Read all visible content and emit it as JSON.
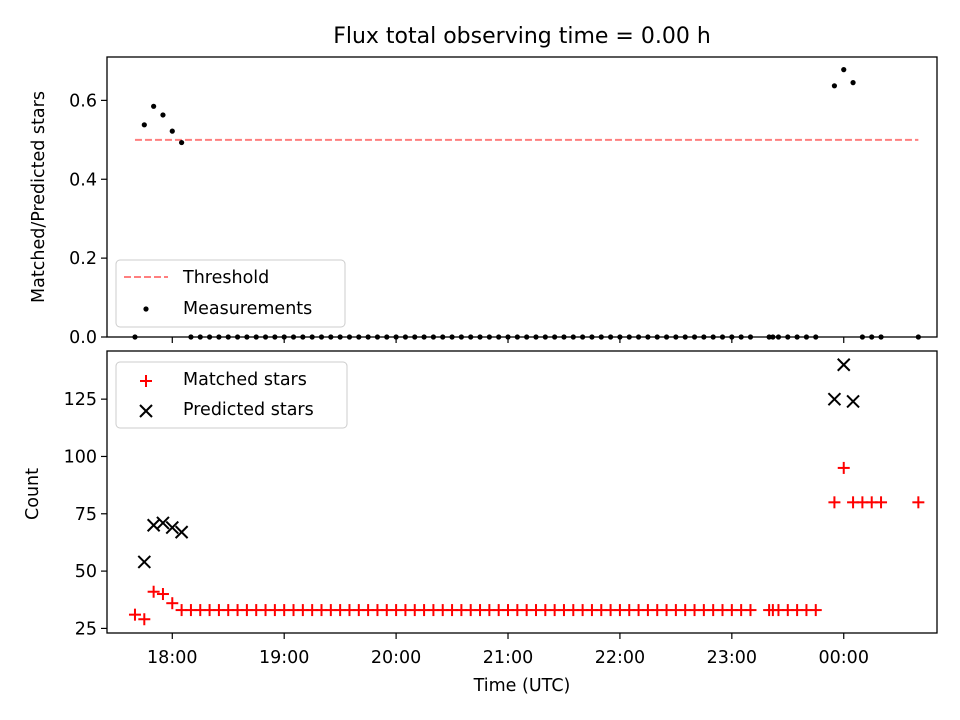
{
  "chart_data": [
    {
      "type": "scatter",
      "title": "Flux total observing time = 0.00 h",
      "xlabel": "",
      "ylabel": "Matched/Predicted stars",
      "ylim": [
        0.0,
        0.71
      ],
      "xlim": [
        "17:25",
        "00:50"
      ],
      "yticks": [
        "0.0",
        "0.2",
        "0.4",
        "0.6"
      ],
      "legend": {
        "placement": "lower-left",
        "entries": [
          "Threshold",
          "Measurements"
        ]
      },
      "threshold": {
        "name": "Threshold",
        "value": 0.5,
        "x_start": "17:40",
        "x_end": "00:40",
        "color": "#ff7f7f"
      },
      "series": [
        {
          "name": "Measurements",
          "color": "#000000",
          "points": [
            {
              "x": "17:40",
              "y": 0.0
            },
            {
              "x": "17:45",
              "y": 0.538
            },
            {
              "x": "17:50",
              "y": 0.585
            },
            {
              "x": "17:55",
              "y": 0.563
            },
            {
              "x": "18:00",
              "y": 0.522
            },
            {
              "x": "18:05",
              "y": 0.493
            },
            {
              "x": "18:10",
              "y": 0.0
            },
            {
              "x": "18:15",
              "y": 0.0
            },
            {
              "x": "18:20",
              "y": 0.0
            },
            {
              "x": "18:25",
              "y": 0.0
            },
            {
              "x": "18:30",
              "y": 0.0
            },
            {
              "x": "18:35",
              "y": 0.0
            },
            {
              "x": "18:40",
              "y": 0.0
            },
            {
              "x": "18:45",
              "y": 0.0
            },
            {
              "x": "18:50",
              "y": 0.0
            },
            {
              "x": "18:55",
              "y": 0.0
            },
            {
              "x": "19:00",
              "y": 0.0
            },
            {
              "x": "19:05",
              "y": 0.0
            },
            {
              "x": "19:10",
              "y": 0.0
            },
            {
              "x": "19:15",
              "y": 0.0
            },
            {
              "x": "19:20",
              "y": 0.0
            },
            {
              "x": "19:25",
              "y": 0.0
            },
            {
              "x": "19:30",
              "y": 0.0
            },
            {
              "x": "19:35",
              "y": 0.0
            },
            {
              "x": "19:40",
              "y": 0.0
            },
            {
              "x": "19:45",
              "y": 0.0
            },
            {
              "x": "19:50",
              "y": 0.0
            },
            {
              "x": "19:55",
              "y": 0.0
            },
            {
              "x": "20:00",
              "y": 0.0
            },
            {
              "x": "20:05",
              "y": 0.0
            },
            {
              "x": "20:10",
              "y": 0.0
            },
            {
              "x": "20:15",
              "y": 0.0
            },
            {
              "x": "20:20",
              "y": 0.0
            },
            {
              "x": "20:25",
              "y": 0.0
            },
            {
              "x": "20:30",
              "y": 0.0
            },
            {
              "x": "20:35",
              "y": 0.0
            },
            {
              "x": "20:40",
              "y": 0.0
            },
            {
              "x": "20:45",
              "y": 0.0
            },
            {
              "x": "20:50",
              "y": 0.0
            },
            {
              "x": "20:55",
              "y": 0.0
            },
            {
              "x": "21:00",
              "y": 0.0
            },
            {
              "x": "21:05",
              "y": 0.0
            },
            {
              "x": "21:10",
              "y": 0.0
            },
            {
              "x": "21:15",
              "y": 0.0
            },
            {
              "x": "21:20",
              "y": 0.0
            },
            {
              "x": "21:25",
              "y": 0.0
            },
            {
              "x": "21:30",
              "y": 0.0
            },
            {
              "x": "21:35",
              "y": 0.0
            },
            {
              "x": "21:40",
              "y": 0.0
            },
            {
              "x": "21:45",
              "y": 0.0
            },
            {
              "x": "21:50",
              "y": 0.0
            },
            {
              "x": "21:55",
              "y": 0.0
            },
            {
              "x": "22:00",
              "y": 0.0
            },
            {
              "x": "22:05",
              "y": 0.0
            },
            {
              "x": "22:10",
              "y": 0.0
            },
            {
              "x": "22:15",
              "y": 0.0
            },
            {
              "x": "22:20",
              "y": 0.0
            },
            {
              "x": "22:25",
              "y": 0.0
            },
            {
              "x": "22:30",
              "y": 0.0
            },
            {
              "x": "22:35",
              "y": 0.0
            },
            {
              "x": "22:40",
              "y": 0.0
            },
            {
              "x": "22:45",
              "y": 0.0
            },
            {
              "x": "22:50",
              "y": 0.0
            },
            {
              "x": "22:55",
              "y": 0.0
            },
            {
              "x": "23:00",
              "y": 0.0
            },
            {
              "x": "23:05",
              "y": 0.0
            },
            {
              "x": "23:10",
              "y": 0.0
            },
            {
              "x": "23:20",
              "y": 0.0
            },
            {
              "x": "23:22",
              "y": 0.0
            },
            {
              "x": "23:25",
              "y": 0.0
            },
            {
              "x": "23:30",
              "y": 0.0
            },
            {
              "x": "23:35",
              "y": 0.0
            },
            {
              "x": "23:40",
              "y": 0.0
            },
            {
              "x": "23:45",
              "y": 0.0
            },
            {
              "x": "23:55",
              "y": 0.637
            },
            {
              "x": "00:00",
              "y": 0.678
            },
            {
              "x": "00:05",
              "y": 0.645
            },
            {
              "x": "00:10",
              "y": 0.0
            },
            {
              "x": "00:15",
              "y": 0.0
            },
            {
              "x": "00:20",
              "y": 0.0
            },
            {
              "x": "00:40",
              "y": 0.0
            }
          ]
        }
      ]
    },
    {
      "type": "scatter",
      "title": "",
      "xlabel": "Time (UTC)",
      "ylabel": "Count",
      "ylim": [
        23,
        146
      ],
      "xlim": [
        "17:25",
        "00:50"
      ],
      "yticks": [
        "25",
        "50",
        "75",
        "100",
        "125"
      ],
      "xticks": [
        "18:00",
        "19:00",
        "20:00",
        "21:00",
        "22:00",
        "23:00",
        "00:00"
      ],
      "legend": {
        "placement": "upper-left",
        "entries": [
          "Matched stars",
          "Predicted stars"
        ]
      },
      "series": [
        {
          "name": "Matched stars",
          "marker": "+",
          "color": "#ff0000",
          "points": [
            {
              "x": "17:40",
              "y": 31
            },
            {
              "x": "17:45",
              "y": 29
            },
            {
              "x": "17:50",
              "y": 41
            },
            {
              "x": "17:55",
              "y": 40
            },
            {
              "x": "18:00",
              "y": 36
            },
            {
              "x": "18:05",
              "y": 33
            },
            {
              "x": "18:10",
              "y": 33
            },
            {
              "x": "18:15",
              "y": 33
            },
            {
              "x": "18:20",
              "y": 33
            },
            {
              "x": "18:25",
              "y": 33
            },
            {
              "x": "18:30",
              "y": 33
            },
            {
              "x": "18:35",
              "y": 33
            },
            {
              "x": "18:40",
              "y": 33
            },
            {
              "x": "18:45",
              "y": 33
            },
            {
              "x": "18:50",
              "y": 33
            },
            {
              "x": "18:55",
              "y": 33
            },
            {
              "x": "19:00",
              "y": 33
            },
            {
              "x": "19:05",
              "y": 33
            },
            {
              "x": "19:10",
              "y": 33
            },
            {
              "x": "19:15",
              "y": 33
            },
            {
              "x": "19:20",
              "y": 33
            },
            {
              "x": "19:25",
              "y": 33
            },
            {
              "x": "19:30",
              "y": 33
            },
            {
              "x": "19:35",
              "y": 33
            },
            {
              "x": "19:40",
              "y": 33
            },
            {
              "x": "19:45",
              "y": 33
            },
            {
              "x": "19:50",
              "y": 33
            },
            {
              "x": "19:55",
              "y": 33
            },
            {
              "x": "20:00",
              "y": 33
            },
            {
              "x": "20:05",
              "y": 33
            },
            {
              "x": "20:10",
              "y": 33
            },
            {
              "x": "20:15",
              "y": 33
            },
            {
              "x": "20:20",
              "y": 33
            },
            {
              "x": "20:25",
              "y": 33
            },
            {
              "x": "20:30",
              "y": 33
            },
            {
              "x": "20:35",
              "y": 33
            },
            {
              "x": "20:40",
              "y": 33
            },
            {
              "x": "20:45",
              "y": 33
            },
            {
              "x": "20:50",
              "y": 33
            },
            {
              "x": "20:55",
              "y": 33
            },
            {
              "x": "21:00",
              "y": 33
            },
            {
              "x": "21:05",
              "y": 33
            },
            {
              "x": "21:10",
              "y": 33
            },
            {
              "x": "21:15",
              "y": 33
            },
            {
              "x": "21:20",
              "y": 33
            },
            {
              "x": "21:25",
              "y": 33
            },
            {
              "x": "21:30",
              "y": 33
            },
            {
              "x": "21:35",
              "y": 33
            },
            {
              "x": "21:40",
              "y": 33
            },
            {
              "x": "21:45",
              "y": 33
            },
            {
              "x": "21:50",
              "y": 33
            },
            {
              "x": "21:55",
              "y": 33
            },
            {
              "x": "22:00",
              "y": 33
            },
            {
              "x": "22:05",
              "y": 33
            },
            {
              "x": "22:10",
              "y": 33
            },
            {
              "x": "22:15",
              "y": 33
            },
            {
              "x": "22:20",
              "y": 33
            },
            {
              "x": "22:25",
              "y": 33
            },
            {
              "x": "22:30",
              "y": 33
            },
            {
              "x": "22:35",
              "y": 33
            },
            {
              "x": "22:40",
              "y": 33
            },
            {
              "x": "22:45",
              "y": 33
            },
            {
              "x": "22:50",
              "y": 33
            },
            {
              "x": "22:55",
              "y": 33
            },
            {
              "x": "23:00",
              "y": 33
            },
            {
              "x": "23:05",
              "y": 33
            },
            {
              "x": "23:10",
              "y": 33
            },
            {
              "x": "23:20",
              "y": 33
            },
            {
              "x": "23:22",
              "y": 33
            },
            {
              "x": "23:25",
              "y": 33
            },
            {
              "x": "23:30",
              "y": 33
            },
            {
              "x": "23:35",
              "y": 33
            },
            {
              "x": "23:40",
              "y": 33
            },
            {
              "x": "23:45",
              "y": 33
            },
            {
              "x": "23:55",
              "y": 80
            },
            {
              "x": "00:00",
              "y": 95
            },
            {
              "x": "00:05",
              "y": 80
            },
            {
              "x": "00:10",
              "y": 80
            },
            {
              "x": "00:15",
              "y": 80
            },
            {
              "x": "00:20",
              "y": 80
            },
            {
              "x": "00:40",
              "y": 80
            }
          ]
        },
        {
          "name": "Predicted stars",
          "marker": "x",
          "color": "#000000",
          "points": [
            {
              "x": "17:45",
              "y": 54
            },
            {
              "x": "17:50",
              "y": 70
            },
            {
              "x": "17:55",
              "y": 71
            },
            {
              "x": "18:00",
              "y": 69
            },
            {
              "x": "18:05",
              "y": 67
            },
            {
              "x": "23:55",
              "y": 125
            },
            {
              "x": "00:00",
              "y": 140
            },
            {
              "x": "00:05",
              "y": 124
            }
          ]
        }
      ]
    }
  ]
}
